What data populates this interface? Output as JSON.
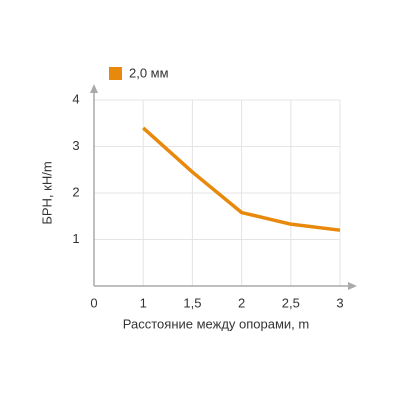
{
  "chart_data": {
    "type": "line",
    "x_label": "Расстояние между опорами, m",
    "y_label": "БРН, кН/m",
    "categories": [
      "0",
      "1",
      "1,5",
      "2",
      "2,5",
      "3"
    ],
    "series": [
      {
        "name": "2,0 мм",
        "color": "#e8890c",
        "values": [
          null,
          3.4,
          2.45,
          1.58,
          1.33,
          1.2
        ]
      }
    ],
    "ylim": [
      0,
      4
    ],
    "yticks": [
      1,
      2,
      3,
      4
    ],
    "grid": true,
    "legend": "top-left"
  }
}
